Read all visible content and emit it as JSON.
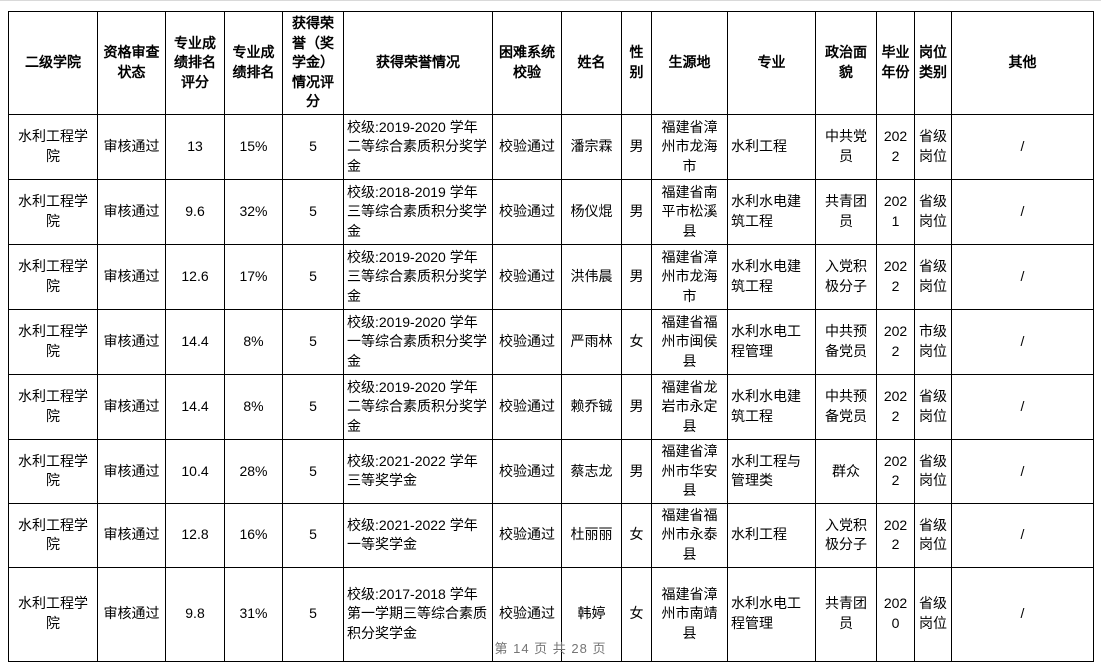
{
  "table": {
    "headers": [
      "二级学院",
      "资格审查状态",
      "专业成绩排名评分",
      "专业成绩排名",
      "获得荣誉（奖学金）情况评分",
      "获得荣誉情况",
      "困难系统校验",
      "姓名",
      "性别",
      "生源地",
      "专业",
      "政治面貌",
      "毕业年份",
      "岗位类别",
      "其他"
    ],
    "rows": [
      [
        "水利工程学院",
        "审核通过",
        "13",
        "15%",
        "5",
        "校级:2019-2020 学年二等综合素质积分奖学金",
        "校验通过",
        "潘宗霖",
        "男",
        "福建省漳州市龙海市",
        "水利工程",
        "中共党员",
        "2022",
        "省级岗位",
        "/"
      ],
      [
        "水利工程学院",
        "审核通过",
        "9.6",
        "32%",
        "5",
        "校级:2018-2019 学年三等综合素质积分奖学金",
        "校验通过",
        "杨仪焜",
        "男",
        "福建省南平市松溪县",
        "水利水电建筑工程",
        "共青团员",
        "2021",
        "省级岗位",
        "/"
      ],
      [
        "水利工程学院",
        "审核通过",
        "12.6",
        "17%",
        "5",
        "校级:2019-2020 学年三等综合素质积分奖学金",
        "校验通过",
        "洪伟晨",
        "男",
        "福建省漳州市龙海市",
        "水利水电建筑工程",
        "入党积极分子",
        "2022",
        "省级岗位",
        "/"
      ],
      [
        "水利工程学院",
        "审核通过",
        "14.4",
        "8%",
        "5",
        "校级:2019-2020 学年一等综合素质积分奖学金",
        "校验通过",
        "严雨林",
        "女",
        "福建省福州市闽侯县",
        "水利水电工程管理",
        "中共预备党员",
        "2022",
        "市级岗位",
        "/"
      ],
      [
        "水利工程学院",
        "审核通过",
        "14.4",
        "8%",
        "5",
        "校级:2019-2020 学年二等综合素质积分奖学金",
        "校验通过",
        "赖乔铖",
        "男",
        "福建省龙岩市永定县",
        "水利水电建筑工程",
        "中共预备党员",
        "2022",
        "省级岗位",
        "/"
      ],
      [
        "水利工程学院",
        "审核通过",
        "10.4",
        "28%",
        "5",
        "校级:2021-2022 学年三等奖学金",
        "校验通过",
        "蔡志龙",
        "男",
        "福建省漳州市华安县",
        "水利工程与管理类",
        "群众",
        "2022",
        "省级岗位",
        "/"
      ],
      [
        "水利工程学院",
        "审核通过",
        "12.8",
        "16%",
        "5",
        "校级:2021-2022 学年一等奖学金",
        "校验通过",
        "杜丽丽",
        "女",
        "福建省福州市永泰县",
        "水利工程",
        "入党积极分子",
        "2022",
        "省级岗位",
        "/"
      ],
      [
        "水利工程学院",
        "审核通过",
        "9.8",
        "31%",
        "5",
        "校级:2017-2018 学年第一学期三等综合素质积分奖学金",
        "校验通过",
        "韩婷",
        "女",
        "福建省漳州市南靖县",
        "水利水电工程管理",
        "共青团员",
        "2020",
        "省级岗位",
        "/"
      ]
    ]
  },
  "footer": {
    "page_info": "第 14 页 共 28 页"
  }
}
